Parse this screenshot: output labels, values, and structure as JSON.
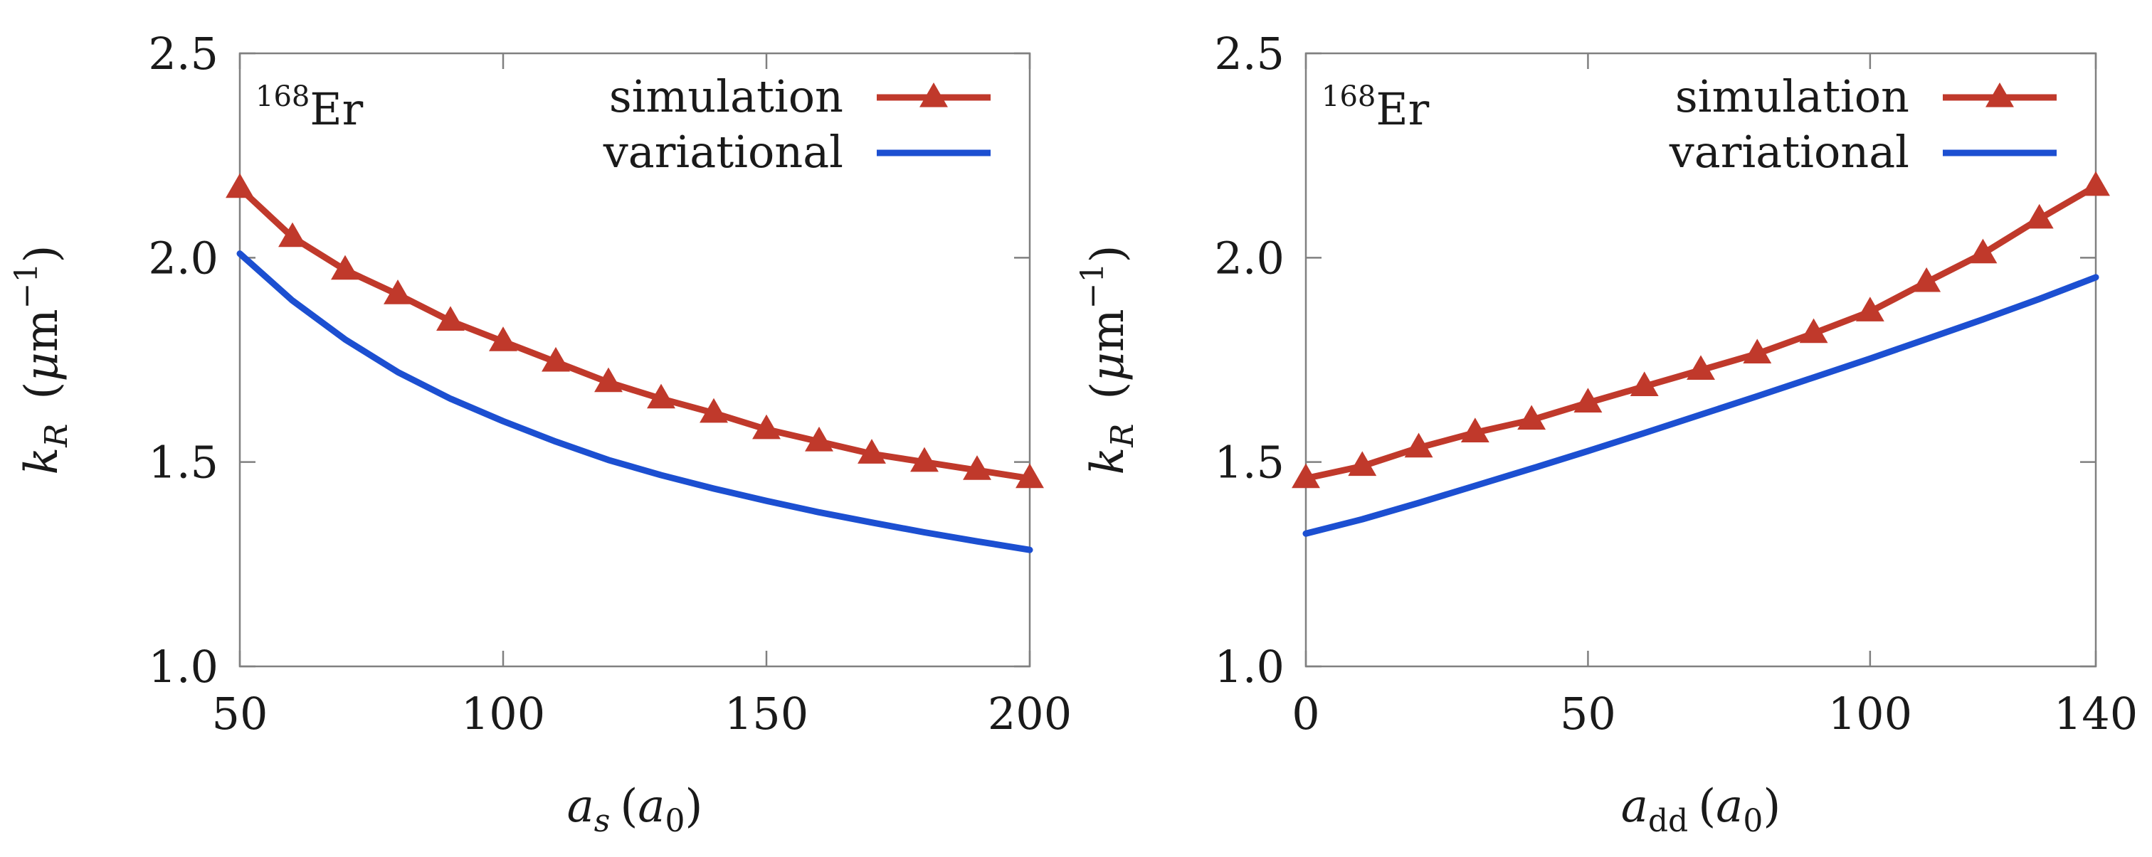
{
  "colors": {
    "simulation": "#c0392b",
    "variational": "#1c4fd1",
    "axis": "#808080"
  },
  "chart_data": [
    {
      "type": "line",
      "annotation": {
        "sup": "168",
        "base": "Er"
      },
      "xlabel": {
        "var": "a",
        "sub": "s",
        "unit_open": "(",
        "unit_var": "a",
        "unit_sub": "0",
        "unit_close": ")"
      },
      "ylabel": {
        "var": "k",
        "sub": "R",
        "unit_open": "(",
        "unit_mu": "μ",
        "unit_m": "m",
        "unit_exp": "−1",
        "unit_close": ")"
      },
      "xlim": [
        50,
        200
      ],
      "ylim": [
        1.0,
        2.5
      ],
      "xticks": [
        50,
        100,
        150,
        200
      ],
      "xtick_labels": [
        "50",
        "100",
        "150",
        "200"
      ],
      "yticks": [
        1.0,
        1.5,
        2.0,
        2.5
      ],
      "ytick_labels": [
        "1.0",
        "1.5",
        "2.0",
        "2.5"
      ],
      "legend_position": "top-right",
      "grid": false,
      "series": [
        {
          "name": "simulation",
          "marker": "triangle",
          "x": [
            50,
            60,
            70,
            80,
            90,
            100,
            110,
            120,
            130,
            140,
            150,
            160,
            170,
            180,
            190,
            200
          ],
          "y": [
            2.17,
            2.05,
            1.97,
            1.91,
            1.845,
            1.795,
            1.745,
            1.695,
            1.655,
            1.62,
            1.58,
            1.55,
            1.52,
            1.5,
            1.48,
            1.46
          ]
        },
        {
          "name": "variational",
          "marker": "none",
          "x": [
            50,
            60,
            70,
            80,
            90,
            100,
            110,
            120,
            130,
            140,
            150,
            160,
            170,
            180,
            190,
            200
          ],
          "y": [
            2.01,
            1.895,
            1.8,
            1.72,
            1.655,
            1.6,
            1.55,
            1.505,
            1.468,
            1.435,
            1.405,
            1.377,
            1.352,
            1.328,
            1.306,
            1.285
          ]
        }
      ]
    },
    {
      "type": "line",
      "annotation": {
        "sup": "168",
        "base": "Er"
      },
      "xlabel": {
        "var": "a",
        "sub": "dd",
        "unit_open": "(",
        "unit_var": "a",
        "unit_sub": "0",
        "unit_close": ")"
      },
      "ylabel": {
        "var": "k",
        "sub": "R",
        "unit_open": "(",
        "unit_mu": "μ",
        "unit_m": "m",
        "unit_exp": "−1",
        "unit_close": ")"
      },
      "xlim": [
        0,
        140
      ],
      "ylim": [
        1.0,
        2.5
      ],
      "xticks": [
        0,
        50,
        100,
        140
      ],
      "xtick_labels": [
        "0",
        "50",
        "100",
        "140"
      ],
      "yticks": [
        1.0,
        1.5,
        2.0,
        2.5
      ],
      "ytick_labels": [
        "1.0",
        "1.5",
        "2.0",
        "2.5"
      ],
      "legend_position": "top-right",
      "grid": false,
      "series": [
        {
          "name": "simulation",
          "marker": "triangle",
          "x": [
            0,
            10,
            20,
            30,
            40,
            50,
            60,
            70,
            80,
            90,
            100,
            110,
            120,
            130,
            140
          ],
          "y": [
            1.46,
            1.49,
            1.535,
            1.572,
            1.603,
            1.645,
            1.685,
            1.725,
            1.765,
            1.815,
            1.868,
            1.94,
            2.01,
            2.095,
            2.175
          ]
        },
        {
          "name": "variational",
          "marker": "none",
          "x": [
            0,
            10,
            20,
            30,
            40,
            50,
            60,
            70,
            80,
            90,
            100,
            110,
            120,
            130,
            140
          ],
          "y": [
            1.325,
            1.36,
            1.4,
            1.442,
            1.484,
            1.527,
            1.571,
            1.616,
            1.661,
            1.707,
            1.753,
            1.801,
            1.849,
            1.899,
            1.952
          ]
        }
      ]
    }
  ]
}
